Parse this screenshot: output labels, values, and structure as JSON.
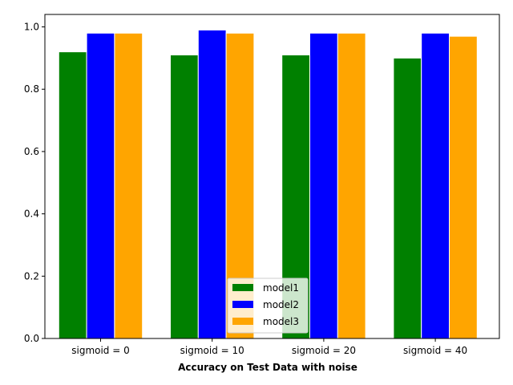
{
  "chart_data": {
    "type": "bar",
    "title": "",
    "xlabel": "Accuracy on Test Data with noise",
    "ylabel": "",
    "categories": [
      "sigmoid = 0",
      "sigmoid = 10",
      "sigmoid = 20",
      "sigmoid = 40"
    ],
    "series": [
      {
        "name": "model1",
        "color": "#008000",
        "values": [
          0.92,
          0.91,
          0.91,
          0.9
        ]
      },
      {
        "name": "model2",
        "color": "#0000ff",
        "values": [
          0.98,
          0.99,
          0.98,
          0.98
        ]
      },
      {
        "name": "model3",
        "color": "#ffa500",
        "values": [
          0.98,
          0.98,
          0.98,
          0.97
        ]
      }
    ],
    "ylim": [
      0,
      1.04
    ],
    "yticks": [
      "0.0",
      "0.2",
      "0.4",
      "0.6",
      "0.8",
      "1.0"
    ],
    "grid": false,
    "legend_position": "bottom-center"
  }
}
